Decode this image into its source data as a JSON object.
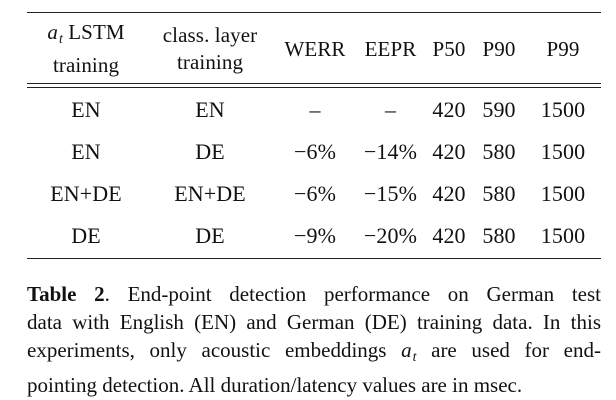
{
  "table": {
    "header": {
      "col0_line1_prefix_var": "a",
      "col0_line1_prefix_sub": "t",
      "col0_line1_suffix": "LSTM",
      "col0_line2": "training",
      "col1_line1": "class. layer",
      "col1_line2": "training",
      "col2": "WERR",
      "col3": "EEPR",
      "col4": "P50",
      "col5": "P90",
      "col6": "P99"
    },
    "rows": [
      [
        "EN",
        "EN",
        "–",
        "–",
        "420",
        "590",
        "1500"
      ],
      [
        "EN",
        "DE",
        "−6%",
        "−14%",
        "420",
        "580",
        "1500"
      ],
      [
        "EN+DE",
        "EN+DE",
        "−6%",
        "−15%",
        "420",
        "580",
        "1500"
      ],
      [
        "DE",
        "DE",
        "−9%",
        "−20%",
        "420",
        "580",
        "1500"
      ]
    ]
  },
  "caption": {
    "label": "Table 2",
    "line1_rest": ".  End-point detection performance on German test",
    "line2": "data with English (EN) and German (DE) training data. In this",
    "line3_before_var": "experiments, only acoustic embeddings ",
    "line3_var": "a",
    "line3_sub": "t",
    "line3_after_var": " are used for end-",
    "line4": "pointing detection. All duration/latency values are in msec."
  }
}
